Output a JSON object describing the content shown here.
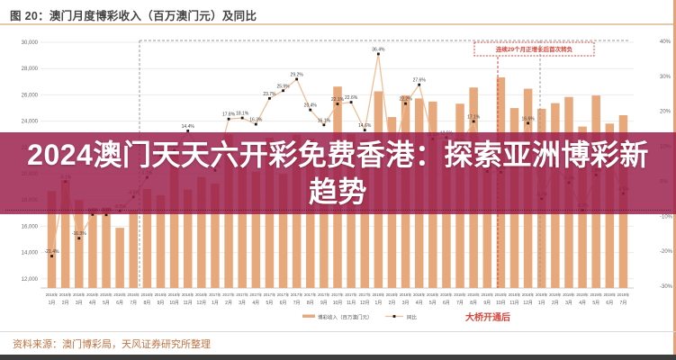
{
  "figure": {
    "title": "图 20：澳门月度博彩收入（百万澳门元）及同比",
    "source": "资料来源：澳门博彩局，天风证券研究所整理"
  },
  "overlay": {
    "line1": "2024澳门天天六开彩免费香港：探索亚洲博彩新",
    "line2": "趋势"
  },
  "annotations": {
    "growth_box_label": "连续29个月正增长后首次转负",
    "bridge_label": "大桥开通后"
  },
  "legend": {
    "bars": "博彩收入（百万澳门元）",
    "line": "同比"
  },
  "colors": {
    "bar": "#e7a87c",
    "line": "#f2bd94",
    "marker": "#1a1a1a",
    "grid": "#ebebeb",
    "axis_text": "#666666",
    "label_text": "#3c3c3c",
    "dashed_box": "#9a9a9a",
    "red_annotation": "#d6453a",
    "banner_bg": "rgba(154,28,73,0.83)",
    "title_divider": "#e3c9ad",
    "right_strip": "#e2a37a",
    "source_text": "#bf7140",
    "bottom_bar": "#3d3d3d",
    "baseline": "#c8c8c8"
  },
  "chart_data": {
    "type": "bar+line combo",
    "title": "澳门月度博彩收入（百万澳门元）及同比",
    "categories": [
      "2016年1月",
      "2016年2月",
      "2016年3月",
      "2016年4月",
      "2016年5月",
      "2016年6月",
      "2016年7月",
      "2016年8月",
      "2016年9月",
      "2016年10月",
      "2016年11月",
      "2016年12月",
      "2017年1月",
      "2017年2月",
      "2017年3月",
      "2017年4月",
      "2017年5月",
      "2017年6月",
      "2017年7月",
      "2017年8月",
      "2017年9月",
      "2017年10月",
      "2017年11月",
      "2017年12月",
      "2018年1月",
      "2018年2月",
      "2018年3月",
      "2018年4月",
      "2018年5月",
      "2018年6月",
      "2018年7月",
      "2018年8月",
      "2018年9月",
      "2018年10月",
      "2018年11月",
      "2018年12月",
      "2019年1月",
      "2019年2月",
      "2019年3月",
      "2019年4月",
      "2019年5月",
      "2019年6月",
      "2019年7月"
    ],
    "series": [
      {
        "name": "博彩收入（百万澳门元）",
        "type": "bar",
        "axis": "left",
        "values": [
          18674,
          19518,
          17980,
          17340,
          17405,
          15883,
          17208,
          18837,
          18365,
          21811,
          18785,
          19743,
          19255,
          22991,
          21224,
          20164,
          22743,
          19992,
          22966,
          22676,
          21327,
          26630,
          23038,
          22625,
          26267,
          24312,
          25952,
          25727,
          25488,
          22490,
          25327,
          26559,
          21952,
          27328,
          24995,
          26468,
          24942,
          25370,
          25840,
          23588,
          25952,
          23812,
          24453
        ]
      },
      {
        "name": "同比",
        "type": "line",
        "axis": "right",
        "values": [
          -21.4,
          -0.1,
          -16.3,
          -9.5,
          -9.6,
          -8.5,
          -4.5,
          1.1,
          7.4,
          8.8,
          14.4,
          8.0,
          3.1,
          17.8,
          18.1,
          16.3,
          23.7,
          25.9,
          29.2,
          20.4,
          16.1,
          22.1,
          22.6,
          14.6,
          36.4,
          5.7,
          22.2,
          27.6,
          12.1,
          12.5,
          10.3,
          17.1,
          2.8,
          2.6,
          8.5,
          16.6,
          -5.0,
          4.4,
          -0.4,
          -8.3,
          1.8,
          5.9,
          -3.5
        ]
      }
    ],
    "left_axis": {
      "label": "百万澳门元",
      "min": 12000,
      "max": 30000,
      "ticks": [
        30000,
        28000,
        26000,
        24000,
        22000,
        20000,
        18000,
        16000,
        14000,
        12000
      ]
    },
    "right_axis": {
      "label": "同比",
      "unit": "%",
      "min": -30,
      "max": 40,
      "ticks": [
        40,
        30,
        20,
        10,
        0,
        -10,
        -20,
        -30
      ]
    },
    "grid": true,
    "legend_position": "bottom-center",
    "annotation_span": {
      "from": "2016年8月",
      "to": "2018年12月",
      "note": "连续29个月正增长后首次转负"
    },
    "event_line": {
      "at": "2018年10月",
      "note": "大桥开通后"
    }
  }
}
